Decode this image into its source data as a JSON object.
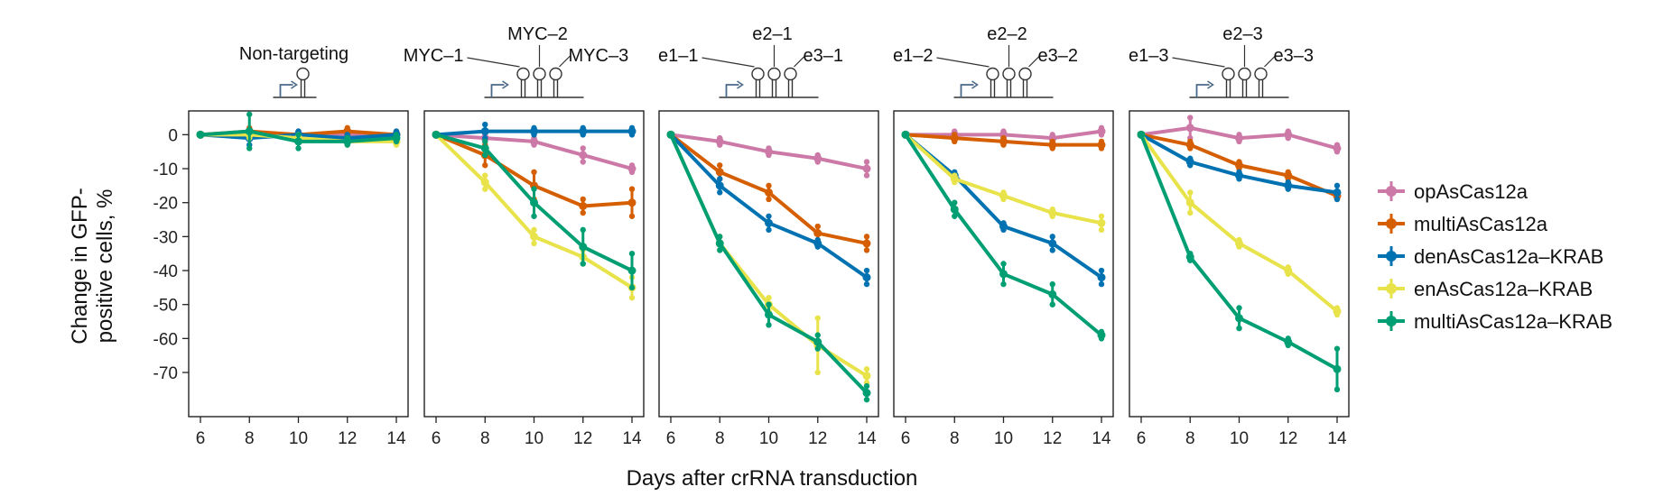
{
  "chart_data": {
    "type": "line",
    "ylabel": "Change in GFP-\npositive cells, %",
    "xlabel": "Days after crRNA transduction",
    "x": [
      6,
      8,
      10,
      12,
      14
    ],
    "xticks": [
      6,
      8,
      10,
      12,
      14
    ],
    "yticks": [
      0,
      -10,
      -20,
      -30,
      -40,
      -50,
      -60,
      -70
    ],
    "ylim": [
      -83,
      7
    ],
    "legend": [
      {
        "name": "opAsCas12a",
        "color": "#cc79a7"
      },
      {
        "name": "multiAsCas12a",
        "color": "#d55e00"
      },
      {
        "name": "denAsCas12a–KRAB",
        "color": "#0072b2"
      },
      {
        "name": "enAsCas12a–KRAB",
        "color": "#e8e34a"
      },
      {
        "name": "multiAsCas12a–KRAB",
        "color": "#009e73"
      }
    ],
    "panels": [
      {
        "title": "Non-targeting",
        "guide_labels": [],
        "series": [
          {
            "name": "opAsCas12a",
            "values": [
              0,
              0,
              0,
              0,
              0
            ],
            "err": [
              0,
              1,
              1,
              1,
              1
            ]
          },
          {
            "name": "multiAsCas12a",
            "values": [
              0,
              1,
              0,
              1,
              0
            ],
            "err": [
              0,
              1,
              1,
              1,
              1
            ]
          },
          {
            "name": "denAsCas12a–KRAB",
            "values": [
              0,
              -1,
              0,
              -1,
              0
            ],
            "err": [
              0,
              2,
              1,
              1,
              1
            ]
          },
          {
            "name": "enAsCas12a–KRAB",
            "values": [
              0,
              0,
              -1,
              -2,
              -2
            ],
            "err": [
              0,
              1,
              1,
              1,
              1
            ]
          },
          {
            "name": "multiAsCas12a–KRAB",
            "values": [
              0,
              1,
              -2,
              -2,
              -1
            ],
            "err": [
              0,
              5,
              2,
              1,
              1
            ]
          }
        ]
      },
      {
        "title": "",
        "guide_labels": [
          "MYC–1",
          "MYC–2",
          "MYC–3"
        ],
        "series": [
          {
            "name": "opAsCas12a",
            "values": [
              0,
              -1,
              -2,
              -6,
              -10
            ],
            "err": [
              0,
              1,
              1,
              2,
              1
            ]
          },
          {
            "name": "multiAsCas12a",
            "values": [
              0,
              -6,
              -15,
              -21,
              -20
            ],
            "err": [
              0,
              3,
              4,
              2,
              4
            ]
          },
          {
            "name": "denAsCas12a–KRAB",
            "values": [
              0,
              1,
              1,
              1,
              1
            ],
            "err": [
              0,
              2,
              1,
              1,
              1
            ]
          },
          {
            "name": "enAsCas12a–KRAB",
            "values": [
              0,
              -14,
              -30,
              -36,
              -45
            ],
            "err": [
              0,
              2,
              2,
              2,
              3
            ]
          },
          {
            "name": "multiAsCas12a–KRAB",
            "values": [
              0,
              -4,
              -20,
              -33,
              -40
            ],
            "err": [
              0,
              2,
              4,
              5,
              5
            ]
          }
        ]
      },
      {
        "title": "",
        "guide_labels": [
          "e1–1",
          "e2–1",
          "e3–1"
        ],
        "series": [
          {
            "name": "opAsCas12a",
            "values": [
              0,
              -2,
              -5,
              -7,
              -10
            ],
            "err": [
              0,
              1,
              1,
              1,
              2
            ]
          },
          {
            "name": "multiAsCas12a",
            "values": [
              0,
              -11,
              -17,
              -29,
              -32
            ],
            "err": [
              0,
              2,
              2,
              2,
              2
            ]
          },
          {
            "name": "denAsCas12a–KRAB",
            "values": [
              0,
              -15,
              -26,
              -32,
              -42
            ],
            "err": [
              0,
              2,
              2,
              1,
              2
            ]
          },
          {
            "name": "enAsCas12a–KRAB",
            "values": [
              0,
              -32,
              -50,
              -62,
              -71
            ],
            "err": [
              0,
              2,
              2,
              8,
              2
            ]
          },
          {
            "name": "multiAsCas12a–KRAB",
            "values": [
              0,
              -32,
              -53,
              -61,
              -76
            ],
            "err": [
              0,
              2,
              3,
              2,
              2
            ]
          }
        ]
      },
      {
        "title": "",
        "guide_labels": [
          "e1–2",
          "e2–2",
          "e3–2"
        ],
        "series": [
          {
            "name": "opAsCas12a",
            "values": [
              0,
              0,
              0,
              -1,
              1
            ],
            "err": [
              0,
              1,
              1,
              1,
              1
            ]
          },
          {
            "name": "multiAsCas12a",
            "values": [
              0,
              -1,
              -2,
              -3,
              -3
            ],
            "err": [
              0,
              1,
              1,
              1,
              1
            ]
          },
          {
            "name": "denAsCas12a–KRAB",
            "values": [
              0,
              -12,
              -27,
              -32,
              -42
            ],
            "err": [
              0,
              1,
              1,
              2,
              2
            ]
          },
          {
            "name": "enAsCas12a–KRAB",
            "values": [
              0,
              -13,
              -18,
              -23,
              -26
            ],
            "err": [
              0,
              1,
              1,
              1,
              2
            ]
          },
          {
            "name": "multiAsCas12a–KRAB",
            "values": [
              0,
              -22,
              -41,
              -47,
              -59
            ],
            "err": [
              0,
              2,
              3,
              3,
              1
            ]
          }
        ]
      },
      {
        "title": "",
        "guide_labels": [
          "e1–3",
          "e2–3",
          "e3–3"
        ],
        "series": [
          {
            "name": "opAsCas12a",
            "values": [
              0,
              2,
              -1,
              0,
              -4
            ],
            "err": [
              0,
              3,
              1,
              1,
              1
            ]
          },
          {
            "name": "multiAsCas12a",
            "values": [
              0,
              -3,
              -9,
              -12,
              -18
            ],
            "err": [
              0,
              1,
              1,
              1,
              1
            ]
          },
          {
            "name": "denAsCas12a–KRAB",
            "values": [
              0,
              -8,
              -12,
              -15,
              -17
            ],
            "err": [
              0,
              1,
              1,
              1,
              2
            ]
          },
          {
            "name": "enAsCas12a–KRAB",
            "values": [
              0,
              -20,
              -32,
              -40,
              -52
            ],
            "err": [
              0,
              3,
              1,
              1,
              1
            ]
          },
          {
            "name": "multiAsCas12a–KRAB",
            "values": [
              0,
              -36,
              -54,
              -61,
              -69
            ],
            "err": [
              0,
              1,
              3,
              1,
              6
            ]
          }
        ]
      }
    ]
  }
}
